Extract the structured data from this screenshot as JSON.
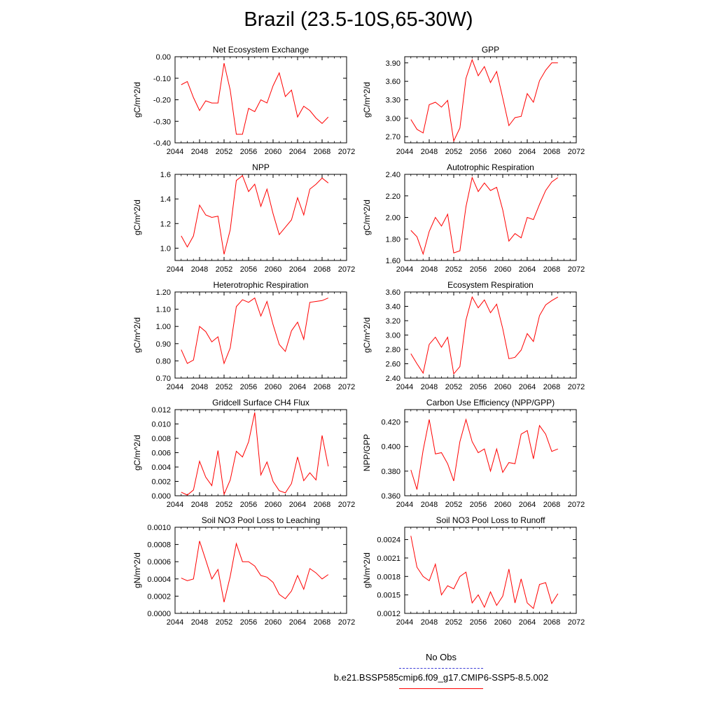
{
  "title": "Brazil (23.5-10S,65-30W)",
  "legend": {
    "obs_label": "No Obs",
    "obs_color": "#3b3bd6",
    "model_label": "b.e21.BSSP585cmip6.f09_g17.CMIP6-SSP5-8.5.002",
    "model_color": "#ff0000"
  },
  "chart_data": [
    {
      "type": "line",
      "title": "Net Ecosystem Exchange",
      "ylabel": "gC/m^2/d",
      "xlim": [
        2044,
        2072
      ],
      "xticks": [
        2044,
        2048,
        2052,
        2056,
        2060,
        2064,
        2068,
        2072
      ],
      "ylim": [
        -0.4,
        0.0
      ],
      "yticks": [
        -0.4,
        -0.3,
        -0.2,
        -0.1,
        0.0
      ],
      "ytick_labels": [
        "-0.40",
        "-0.30",
        "-0.20",
        "-0.10",
        "0.00"
      ],
      "x": [
        2045,
        2046,
        2047,
        2048,
        2049,
        2050,
        2051,
        2052,
        2053,
        2054,
        2055,
        2056,
        2057,
        2058,
        2059,
        2060,
        2061,
        2062,
        2063,
        2064,
        2065,
        2066,
        2067,
        2068,
        2069
      ],
      "values": [
        -0.13,
        -0.115,
        -0.19,
        -0.25,
        -0.205,
        -0.215,
        -0.215,
        -0.03,
        -0.155,
        -0.36,
        -0.36,
        -0.24,
        -0.255,
        -0.2,
        -0.215,
        -0.135,
        -0.075,
        -0.185,
        -0.155,
        -0.28,
        -0.23,
        -0.25,
        -0.285,
        -0.31,
        -0.28
      ],
      "color": "#ff0000"
    },
    {
      "type": "line",
      "title": "GPP",
      "ylabel": "gC/m^2/d",
      "xlim": [
        2044,
        2072
      ],
      "xticks": [
        2044,
        2048,
        2052,
        2056,
        2060,
        2064,
        2068,
        2072
      ],
      "ylim": [
        2.6,
        4.0
      ],
      "yticks": [
        2.7,
        3.0,
        3.3,
        3.6,
        3.9
      ],
      "ytick_labels": [
        "2.70",
        "3.00",
        "3.30",
        "3.60",
        "3.90"
      ],
      "x": [
        2045,
        2046,
        2047,
        2048,
        2049,
        2050,
        2051,
        2052,
        2053,
        2054,
        2055,
        2056,
        2057,
        2058,
        2059,
        2060,
        2061,
        2062,
        2063,
        2064,
        2065,
        2066,
        2067,
        2068,
        2069
      ],
      "values": [
        2.98,
        2.82,
        2.76,
        3.22,
        3.26,
        3.18,
        3.29,
        2.63,
        2.84,
        3.65,
        3.95,
        3.69,
        3.84,
        3.58,
        3.76,
        3.33,
        2.88,
        3.01,
        3.03,
        3.4,
        3.26,
        3.61,
        3.78,
        3.9,
        3.9
      ],
      "color": "#ff0000"
    },
    {
      "type": "line",
      "title": "NPP",
      "ylabel": "gC/m^2/d",
      "xlim": [
        2044,
        2072
      ],
      "xticks": [
        2044,
        2048,
        2052,
        2056,
        2060,
        2064,
        2068,
        2072
      ],
      "ylim": [
        0.9,
        1.6
      ],
      "yticks": [
        1.0,
        1.2,
        1.4,
        1.6
      ],
      "ytick_labels": [
        "1.0",
        "1.2",
        "1.4",
        "1.6"
      ],
      "x": [
        2045,
        2046,
        2047,
        2048,
        2049,
        2050,
        2051,
        2052,
        2053,
        2054,
        2055,
        2056,
        2057,
        2058,
        2059,
        2060,
        2061,
        2062,
        2063,
        2064,
        2065,
        2066,
        2067,
        2068,
        2069
      ],
      "values": [
        1.1,
        1.01,
        1.1,
        1.35,
        1.27,
        1.25,
        1.26,
        0.95,
        1.15,
        1.55,
        1.59,
        1.46,
        1.52,
        1.34,
        1.48,
        1.28,
        1.11,
        1.17,
        1.23,
        1.41,
        1.27,
        1.48,
        1.52,
        1.57,
        1.53
      ],
      "color": "#ff0000"
    },
    {
      "type": "line",
      "title": "Autotrophic Respiration",
      "ylabel": "gC/m^2/d",
      "xlim": [
        2044,
        2072
      ],
      "xticks": [
        2044,
        2048,
        2052,
        2056,
        2060,
        2064,
        2068,
        2072
      ],
      "ylim": [
        1.6,
        2.4
      ],
      "yticks": [
        1.6,
        1.8,
        2.0,
        2.2,
        2.4
      ],
      "ytick_labels": [
        "1.60",
        "1.80",
        "2.00",
        "2.20",
        "2.40"
      ],
      "x": [
        2045,
        2046,
        2047,
        2048,
        2049,
        2050,
        2051,
        2052,
        2053,
        2054,
        2055,
        2056,
        2057,
        2058,
        2059,
        2060,
        2061,
        2062,
        2063,
        2064,
        2065,
        2066,
        2067,
        2068,
        2069
      ],
      "values": [
        1.88,
        1.82,
        1.66,
        1.87,
        2.0,
        1.92,
        2.03,
        1.67,
        1.69,
        2.1,
        2.37,
        2.24,
        2.32,
        2.25,
        2.28,
        2.07,
        1.78,
        1.85,
        1.81,
        2.0,
        1.98,
        2.12,
        2.25,
        2.33,
        2.37
      ],
      "color": "#ff0000"
    },
    {
      "type": "line",
      "title": "Heterotrophic Respiration",
      "ylabel": "gC/m^2/d",
      "xlim": [
        2044,
        2072
      ],
      "xticks": [
        2044,
        2048,
        2052,
        2056,
        2060,
        2064,
        2068,
        2072
      ],
      "ylim": [
        0.7,
        1.2
      ],
      "yticks": [
        0.7,
        0.8,
        0.9,
        1.0,
        1.1,
        1.2
      ],
      "ytick_labels": [
        "0.70",
        "0.80",
        "0.90",
        "1.00",
        "1.10",
        "1.20"
      ],
      "x": [
        2045,
        2046,
        2047,
        2048,
        2049,
        2050,
        2051,
        2052,
        2053,
        2054,
        2055,
        2056,
        2057,
        2058,
        2059,
        2060,
        2061,
        2062,
        2063,
        2064,
        2065,
        2066,
        2067,
        2068,
        2069
      ],
      "values": [
        0.865,
        0.785,
        0.805,
        1.0,
        0.97,
        0.91,
        0.94,
        0.785,
        0.875,
        1.115,
        1.155,
        1.14,
        1.165,
        1.06,
        1.145,
        1.01,
        0.895,
        0.855,
        0.975,
        1.025,
        0.925,
        1.14,
        1.145,
        1.15,
        1.165
      ],
      "color": "#ff0000"
    },
    {
      "type": "line",
      "title": "Ecosystem Respiration",
      "ylabel": "gC/m^2/d",
      "xlim": [
        2044,
        2072
      ],
      "xticks": [
        2044,
        2048,
        2052,
        2056,
        2060,
        2064,
        2068,
        2072
      ],
      "ylim": [
        2.4,
        3.6
      ],
      "yticks": [
        2.4,
        2.6,
        2.8,
        3.0,
        3.2,
        3.4,
        3.6
      ],
      "ytick_labels": [
        "2.40",
        "2.60",
        "2.80",
        "3.00",
        "3.20",
        "3.40",
        "3.60"
      ],
      "x": [
        2045,
        2046,
        2047,
        2048,
        2049,
        2050,
        2051,
        2052,
        2053,
        2054,
        2055,
        2056,
        2057,
        2058,
        2059,
        2060,
        2061,
        2062,
        2063,
        2064,
        2065,
        2066,
        2067,
        2068,
        2069
      ],
      "values": [
        2.74,
        2.6,
        2.47,
        2.87,
        2.97,
        2.83,
        2.97,
        2.46,
        2.56,
        3.21,
        3.53,
        3.38,
        3.49,
        3.31,
        3.43,
        3.09,
        2.67,
        2.69,
        2.79,
        3.02,
        2.91,
        3.27,
        3.42,
        3.48,
        3.53
      ],
      "color": "#ff0000"
    },
    {
      "type": "line",
      "title": "Gridcell Surface CH4 Flux",
      "ylabel": "gC/m^2/d",
      "xlim": [
        2044,
        2072
      ],
      "xticks": [
        2044,
        2048,
        2052,
        2056,
        2060,
        2064,
        2068,
        2072
      ],
      "ylim": [
        0.0,
        0.012
      ],
      "yticks": [
        0.0,
        0.002,
        0.004,
        0.006,
        0.008,
        0.01,
        0.012
      ],
      "ytick_labels": [
        "0.000",
        "0.002",
        "0.004",
        "0.006",
        "0.008",
        "0.010",
        "0.012"
      ],
      "x": [
        2045,
        2046,
        2047,
        2048,
        2049,
        2050,
        2051,
        2052,
        2053,
        2054,
        2055,
        2056,
        2057,
        2058,
        2059,
        2060,
        2061,
        2062,
        2063,
        2064,
        2065,
        2066,
        2067,
        2068,
        2069
      ],
      "values": [
        0.0005,
        0.0001,
        0.0008,
        0.0048,
        0.0026,
        0.0014,
        0.0063,
        0.0002,
        0.0022,
        0.0062,
        0.0054,
        0.0075,
        0.0116,
        0.0029,
        0.0047,
        0.002,
        0.0007,
        0.0004,
        0.0017,
        0.0054,
        0.0021,
        0.0032,
        0.0022,
        0.0084,
        0.0041
      ],
      "color": "#ff0000"
    },
    {
      "type": "line",
      "title": "Carbon Use Efficiency (NPP/GPP)",
      "ylabel": "NPP/GPP",
      "xlim": [
        2044,
        2072
      ],
      "xticks": [
        2044,
        2048,
        2052,
        2056,
        2060,
        2064,
        2068,
        2072
      ],
      "ylim": [
        0.36,
        0.43
      ],
      "yticks": [
        0.36,
        0.38,
        0.4,
        0.42
      ],
      "ytick_labels": [
        "0.360",
        "0.380",
        "0.400",
        "0.420"
      ],
      "x": [
        2045,
        2046,
        2047,
        2048,
        2049,
        2050,
        2051,
        2052,
        2053,
        2054,
        2055,
        2056,
        2057,
        2058,
        2059,
        2060,
        2061,
        2062,
        2063,
        2064,
        2065,
        2066,
        2067,
        2068,
        2069
      ],
      "values": [
        0.381,
        0.365,
        0.397,
        0.422,
        0.394,
        0.395,
        0.386,
        0.372,
        0.404,
        0.422,
        0.404,
        0.395,
        0.398,
        0.38,
        0.398,
        0.379,
        0.387,
        0.386,
        0.41,
        0.413,
        0.39,
        0.417,
        0.41,
        0.396,
        0.398
      ],
      "color": "#ff0000"
    },
    {
      "type": "line",
      "title": "Soil NO3 Pool Loss to Leaching",
      "ylabel": "gN/m^2/d",
      "xlim": [
        2044,
        2072
      ],
      "xticks": [
        2044,
        2048,
        2052,
        2056,
        2060,
        2064,
        2068,
        2072
      ],
      "ylim": [
        0.0,
        0.001
      ],
      "yticks": [
        0.0,
        0.0002,
        0.0004,
        0.0006,
        0.0008,
        0.001
      ],
      "ytick_labels": [
        "0.0000",
        "0.0002",
        "0.0004",
        "0.0006",
        "0.0008",
        "0.0010"
      ],
      "x": [
        2045,
        2046,
        2047,
        2048,
        2049,
        2050,
        2051,
        2052,
        2053,
        2054,
        2055,
        2056,
        2057,
        2058,
        2059,
        2060,
        2061,
        2062,
        2063,
        2064,
        2065,
        2066,
        2067,
        2068,
        2069
      ],
      "values": [
        0.00041,
        0.00038,
        0.0004,
        0.00084,
        0.00062,
        0.0004,
        0.00051,
        0.00013,
        0.00043,
        0.00081,
        0.0006,
        0.0006,
        0.00055,
        0.00044,
        0.00042,
        0.00036,
        0.00022,
        0.00017,
        0.00026,
        0.00044,
        0.00028,
        0.00052,
        0.00047,
        0.0004,
        0.00045
      ],
      "color": "#ff0000"
    },
    {
      "type": "line",
      "title": "Soil NO3 Pool Loss to Runoff",
      "ylabel": "gN/m^2/d",
      "xlim": [
        2044,
        2072
      ],
      "xticks": [
        2044,
        2048,
        2052,
        2056,
        2060,
        2064,
        2068,
        2072
      ],
      "ylim": [
        0.0012,
        0.0026
      ],
      "yticks": [
        0.0012,
        0.0015,
        0.0018,
        0.0021,
        0.0024
      ],
      "ytick_labels": [
        "0.0012",
        "0.0015",
        "0.0018",
        "0.0021",
        "0.0024"
      ],
      "x": [
        2045,
        2046,
        2047,
        2048,
        2049,
        2050,
        2051,
        2052,
        2053,
        2054,
        2055,
        2056,
        2057,
        2058,
        2059,
        2060,
        2061,
        2062,
        2063,
        2064,
        2065,
        2066,
        2067,
        2068,
        2069
      ],
      "values": [
        0.00246,
        0.00195,
        0.0018,
        0.00173,
        0.002,
        0.0015,
        0.00165,
        0.0016,
        0.0018,
        0.00187,
        0.00137,
        0.0015,
        0.0013,
        0.00155,
        0.00133,
        0.00148,
        0.00192,
        0.00137,
        0.00176,
        0.00137,
        0.00128,
        0.00167,
        0.0017,
        0.00136,
        0.00152
      ],
      "color": "#ff0000"
    }
  ]
}
